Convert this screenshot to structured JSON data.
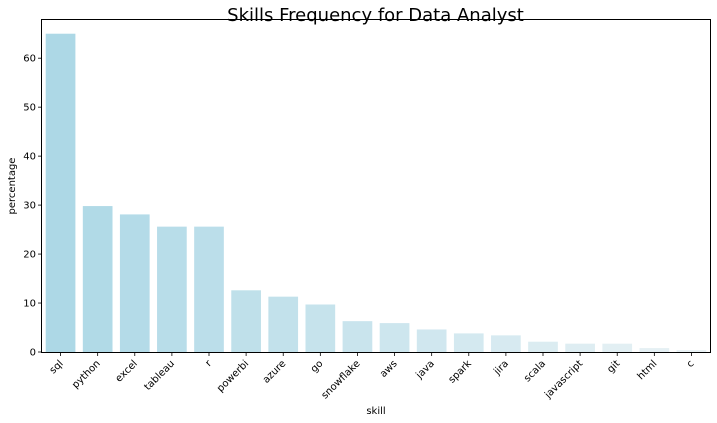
{
  "chart_data": {
    "type": "bar",
    "title": "Skills Frequency for Data Analyst",
    "xlabel": "skill",
    "ylabel": "percentage",
    "categories": [
      "sql",
      "python",
      "excel",
      "tableau",
      "r",
      "powerbi",
      "azure",
      "go",
      "snowflake",
      "aws",
      "java",
      "spark",
      "jira",
      "scala",
      "javascript",
      "git",
      "html",
      "c"
    ],
    "values": [
      65.0,
      29.8,
      28.1,
      25.6,
      25.6,
      12.6,
      11.3,
      9.7,
      6.3,
      5.9,
      4.6,
      3.8,
      3.4,
      2.1,
      1.7,
      1.7,
      0.8,
      0.4
    ],
    "ylim": [
      0,
      67.8
    ],
    "yticks": [
      0,
      10,
      20,
      30,
      40,
      50,
      60
    ],
    "grid": false,
    "bar_color_start": "#add8e6",
    "bar_color_end": "#e9f2f5"
  }
}
